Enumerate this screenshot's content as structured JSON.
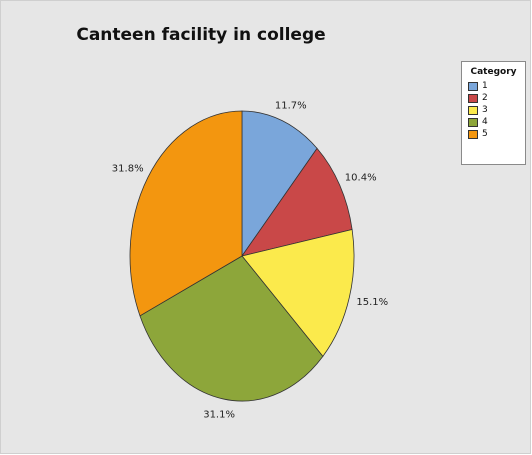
{
  "chart_data": {
    "type": "pie",
    "title": "Canteen facility in college",
    "legend_title": "Category",
    "legend_position": "top-right",
    "slices": [
      {
        "category": "1",
        "value": 11.7,
        "label": "11.7%",
        "color": "#7aa6da"
      },
      {
        "category": "2",
        "value": 10.4,
        "label": "10.4%",
        "color": "#c94848"
      },
      {
        "category": "3",
        "value": 15.1,
        "label": "15.1%",
        "color": "#fbea4c"
      },
      {
        "category": "4",
        "value": 31.1,
        "label": "31.1%",
        "color": "#8da63a"
      },
      {
        "category": "5",
        "value": 31.8,
        "label": "31.8%",
        "color": "#f3960f"
      }
    ]
  }
}
